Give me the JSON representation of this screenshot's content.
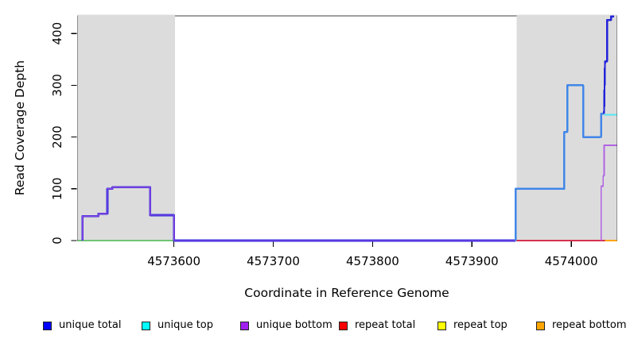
{
  "chart_data": {
    "type": "line",
    "title": "",
    "xlabel": "Coordinate in Reference Genome",
    "ylabel": "Read Coverage Depth",
    "xlim": [
      4573503,
      4574046
    ],
    "ylim": [
      0,
      434
    ],
    "grid": false,
    "x_ticks": [
      {
        "value": 4573600,
        "label": "4573600"
      },
      {
        "value": 4573700,
        "label": "4573700"
      },
      {
        "value": 4573800,
        "label": "4573800"
      },
      {
        "value": 4573900,
        "label": "4573900"
      },
      {
        "value": 4574000,
        "label": "4574000"
      }
    ],
    "y_ticks": [
      {
        "value": 0,
        "label": "0"
      },
      {
        "value": 100,
        "label": "100"
      },
      {
        "value": 200,
        "label": "200"
      },
      {
        "value": 300,
        "label": "300"
      },
      {
        "value": 400,
        "label": "400"
      }
    ],
    "shaded_regions": [
      {
        "x0": 4573503,
        "x1": 4573601,
        "color": "#DCDCDC"
      },
      {
        "x0": 4573945,
        "x1": 4574046,
        "color": "#DCDCDC"
      }
    ],
    "series": [
      {
        "id": "zero-line-left-green",
        "label": "",
        "color": "#6FC573",
        "lw": 1.6,
        "points": [
          [
            4573503,
            0
          ],
          [
            4573601,
            0
          ]
        ]
      },
      {
        "id": "unique-total-left",
        "label": "unique total",
        "color": "#2B2BDF",
        "lw": 2.6,
        "points": [
          [
            4573508,
            0
          ],
          [
            4573508,
            47
          ],
          [
            4573524,
            47
          ],
          [
            4573524,
            52
          ],
          [
            4573533,
            52
          ],
          [
            4573533,
            100
          ],
          [
            4573538,
            100
          ],
          [
            4573538,
            103
          ],
          [
            4573576,
            103
          ],
          [
            4573576,
            49
          ],
          [
            4573600,
            49
          ],
          [
            4573600,
            0
          ],
          [
            4573944,
            0
          ]
        ]
      },
      {
        "id": "unique-bottom-left",
        "label": "unique bottom",
        "color": "#8A46DF",
        "lw": 1.4,
        "points": [
          [
            4573508,
            0
          ],
          [
            4573508,
            47
          ],
          [
            4573524,
            47
          ],
          [
            4573524,
            52
          ],
          [
            4573533,
            52
          ],
          [
            4573533,
            100
          ],
          [
            4573538,
            100
          ],
          [
            4573538,
            103
          ],
          [
            4573576,
            103
          ],
          [
            4573576,
            49
          ],
          [
            4573600,
            49
          ],
          [
            4573600,
            0
          ],
          [
            4573944,
            0
          ]
        ]
      },
      {
        "id": "repeat-total-right",
        "label": "repeat total",
        "color": "#D53050",
        "lw": 1.6,
        "points": [
          [
            4573945,
            0
          ],
          [
            4574046,
            0
          ]
        ]
      },
      {
        "id": "repeat-bottom-right",
        "label": "repeat bottom",
        "color": "#FFA512",
        "lw": 2.2,
        "points": [
          [
            4574034,
            0
          ],
          [
            4574046,
            0
          ]
        ]
      },
      {
        "id": "coverage-right",
        "label": "",
        "color": "#4186E8",
        "lw": 2.4,
        "points": [
          [
            4573944,
            0
          ],
          [
            4573944,
            100
          ],
          [
            4573993,
            100
          ],
          [
            4573993,
            210
          ],
          [
            4573996,
            210
          ],
          [
            4573996,
            300
          ],
          [
            4574012,
            300
          ],
          [
            4574012,
            200
          ],
          [
            4574030,
            200
          ],
          [
            4574030,
            245
          ],
          [
            4574033,
            245
          ]
        ]
      },
      {
        "id": "unique-total-right",
        "label": "unique total",
        "color": "#2323D9",
        "lw": 2.4,
        "points": [
          [
            4574033,
            245
          ],
          [
            4574034,
            346
          ],
          [
            4574036,
            346
          ],
          [
            4574036,
            426
          ],
          [
            4574040,
            426
          ],
          [
            4574040,
            433
          ],
          [
            4574043,
            433
          ]
        ]
      },
      {
        "id": "unique-top-right",
        "label": "unique top",
        "color": "#55E6F2",
        "lw": 2.0,
        "points": [
          [
            4574033,
            243
          ],
          [
            4574046,
            243
          ]
        ]
      },
      {
        "id": "unique-bottom-right",
        "label": "unique bottom",
        "color": "#B163E3",
        "lw": 1.7,
        "points": [
          [
            4574030,
            0
          ],
          [
            4574030,
            105
          ],
          [
            4574032,
            105
          ],
          [
            4574032,
            125
          ],
          [
            4574033,
            125
          ],
          [
            4574033,
            184
          ],
          [
            4574046,
            184
          ]
        ]
      }
    ],
    "legend": {
      "position": "bottom",
      "entries": [
        {
          "label": "unique total",
          "color": "#0000FF"
        },
        {
          "label": "unique top",
          "color": "#00FFFF"
        },
        {
          "label": "unique bottom",
          "color": "#A020F0"
        },
        {
          "label": "repeat total",
          "color": "#FF0000"
        },
        {
          "label": "repeat top",
          "color": "#FFFF00"
        },
        {
          "label": "repeat bottom",
          "color": "#FFA500"
        }
      ]
    }
  }
}
